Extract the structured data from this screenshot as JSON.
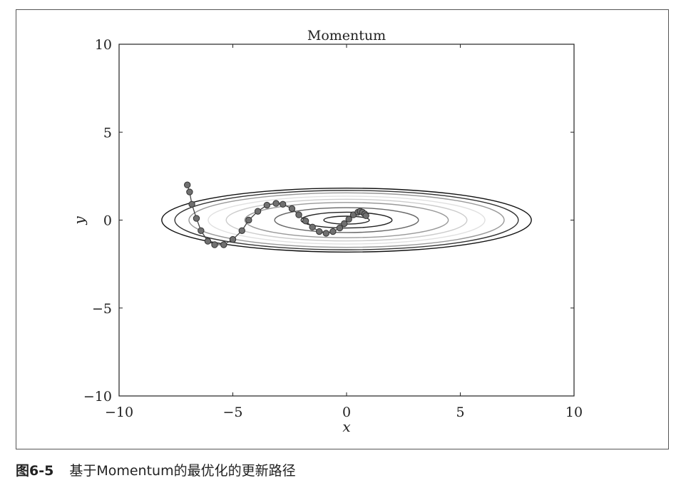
{
  "chart_data": {
    "type": "line",
    "title": "Momentum",
    "xlabel": "x",
    "ylabel": "y",
    "xlim": [
      -10,
      10
    ],
    "ylim": [
      -10,
      10
    ],
    "xticks": [
      -10,
      -5,
      0,
      5,
      10
    ],
    "yticks": [
      -10,
      -5,
      0,
      5,
      10
    ],
    "xtick_labels": [
      "−10",
      "−5",
      "0",
      "5",
      "10"
    ],
    "ytick_labels": [
      "−10",
      "−5",
      "0",
      "5",
      "10"
    ],
    "contour_function": "f(x, y) = x^2 / 20 + y^2",
    "contour_levels": [
      {
        "level": 0.05,
        "color": "#222222"
      },
      {
        "level": 0.2,
        "color": "#222222"
      },
      {
        "level": 0.5,
        "color": "#666666"
      },
      {
        "level": 1.0,
        "color": "#999999"
      },
      {
        "level": 1.4,
        "color": "#cccccc"
      },
      {
        "level": 1.85,
        "color": "#e0e0e0"
      },
      {
        "level": 2.4,
        "color": "#999999"
      },
      {
        "level": 2.85,
        "color": "#333333"
      },
      {
        "level": 3.3,
        "color": "#111111"
      }
    ],
    "series": [
      {
        "name": "Momentum path",
        "x": [
          -7.0,
          -6.9,
          -6.8,
          -6.6,
          -6.4,
          -6.1,
          -5.8,
          -5.4,
          -5.0,
          -4.6,
          -4.3,
          -3.9,
          -3.5,
          -3.1,
          -2.8,
          -2.4,
          -2.1,
          -1.8,
          -1.5,
          -1.2,
          -0.9,
          -0.6,
          -0.3,
          -0.1,
          0.1,
          0.3,
          0.5,
          0.6,
          0.7,
          0.8,
          0.85
        ],
        "y": [
          2.0,
          1.6,
          0.9,
          0.1,
          -0.6,
          -1.2,
          -1.4,
          -1.4,
          -1.1,
          -0.6,
          0.0,
          0.5,
          0.85,
          0.95,
          0.9,
          0.65,
          0.3,
          -0.05,
          -0.4,
          -0.65,
          -0.75,
          -0.65,
          -0.45,
          -0.2,
          0.05,
          0.3,
          0.45,
          0.5,
          0.45,
          0.35,
          0.25
        ]
      }
    ]
  },
  "caption": {
    "figure_number": "图6-5",
    "text": "基于Momentum的最优化的更新路径"
  }
}
